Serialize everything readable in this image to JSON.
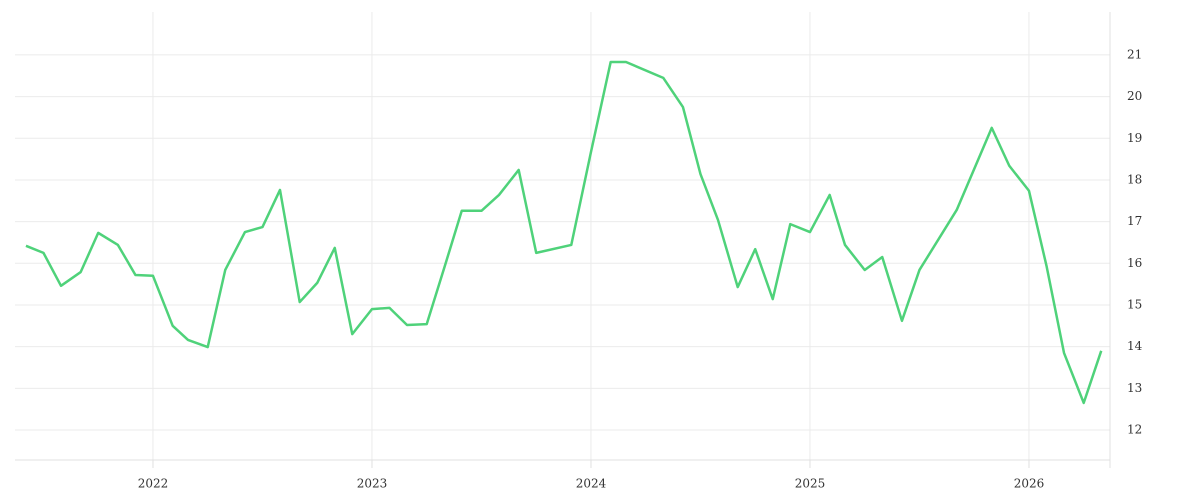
{
  "chart_data": {
    "type": "line",
    "x": [
      2021.42,
      2021.5,
      2021.58,
      2021.67,
      2021.75,
      2021.84,
      2021.92,
      2022.0,
      2022.09,
      2022.16,
      2022.25,
      2022.33,
      2022.42,
      2022.5,
      2022.58,
      2022.67,
      2022.75,
      2022.83,
      2022.91,
      2023.0,
      2023.08,
      2023.16,
      2023.25,
      2023.33,
      2023.41,
      2023.5,
      2023.58,
      2023.67,
      2023.75,
      2023.91,
      2024.0,
      2024.09,
      2024.16,
      2024.33,
      2024.42,
      2024.5,
      2024.58,
      2024.67,
      2024.75,
      2024.83,
      2024.91,
      2025.0,
      2025.09,
      2025.16,
      2025.25,
      2025.33,
      2025.42,
      2025.5,
      2025.67,
      2025.83,
      2025.91,
      2026.0,
      2026.08,
      2026.16,
      2026.25,
      2026.33
    ],
    "series": [
      {
        "color": "#4fd27a",
        "values": [
          16.42,
          16.25,
          15.46,
          15.79,
          16.73,
          16.44,
          15.72,
          15.7,
          14.5,
          14.16,
          13.99,
          15.84,
          16.75,
          16.87,
          17.76,
          15.07,
          15.53,
          16.37,
          14.3,
          14.9,
          14.93,
          14.52,
          14.54,
          15.89,
          17.26,
          17.26,
          17.64,
          18.24,
          16.25,
          16.44,
          18.67,
          20.83,
          20.83,
          20.45,
          19.75,
          18.14,
          17.04,
          15.43,
          16.34,
          15.14,
          16.94,
          16.75,
          17.64,
          16.44,
          15.84,
          16.15,
          14.62,
          15.84,
          17.28,
          19.25,
          18.34,
          17.74,
          15.94,
          13.85,
          12.65,
          13.9
        ]
      }
    ],
    "xlim": [
      2021.37,
      2026.37
    ],
    "xticks": [
      2022,
      2023,
      2024,
      2025,
      2026
    ],
    "ylim": [
      11.28,
      22.03
    ],
    "yticks": [
      12,
      13,
      14,
      15,
      16,
      17,
      18,
      19,
      20,
      21
    ],
    "grid": true
  }
}
